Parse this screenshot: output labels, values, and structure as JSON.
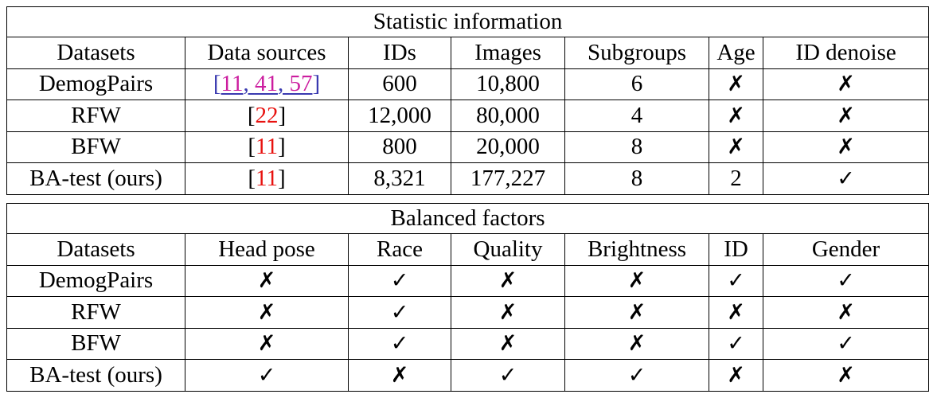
{
  "table1": {
    "title": "Statistic information",
    "headers": [
      "Datasets",
      "Data sources",
      "IDs",
      "Images",
      "Subgroups",
      "Age",
      "ID denoise"
    ],
    "rows": [
      {
        "dataset": "DemogPairs",
        "refs": [
          "11",
          "41",
          "57"
        ],
        "ids": "600",
        "images": "10,800",
        "subgroups": "6",
        "age": "✗",
        "denoise": "✗"
      },
      {
        "dataset": "RFW",
        "refs": [
          "22"
        ],
        "ids": "12,000",
        "images": "80,000",
        "subgroups": "4",
        "age": "✗",
        "denoise": "✗"
      },
      {
        "dataset": "BFW",
        "refs": [
          "11"
        ],
        "ids": "800",
        "images": "20,000",
        "subgroups": "8",
        "age": "✗",
        "denoise": "✗"
      },
      {
        "dataset": "BA-test (ours)",
        "refs": [
          "11"
        ],
        "ids": "8,321",
        "images": "177,227",
        "subgroups": "8",
        "age": "2",
        "denoise": "✓"
      }
    ]
  },
  "table2": {
    "title": "Balanced factors",
    "headers": [
      "Datasets",
      "Head pose",
      "Race",
      "Quality",
      "Brightness",
      "ID",
      "Gender"
    ],
    "rows": [
      {
        "dataset": "DemogPairs",
        "vals": [
          "✗",
          "✓",
          "✗",
          "✗",
          "✓",
          "✓"
        ]
      },
      {
        "dataset": "RFW",
        "vals": [
          "✗",
          "✓",
          "✗",
          "✗",
          "✗",
          "✗"
        ]
      },
      {
        "dataset": "BFW",
        "vals": [
          "✗",
          "✓",
          "✗",
          "✗",
          "✓",
          "✓"
        ]
      },
      {
        "dataset": "BA-test (ours)",
        "vals": [
          "✓",
          "✗",
          "✓",
          "✓",
          "✗",
          "✗"
        ]
      }
    ]
  },
  "colors": {
    "ref_red": "#e8120f",
    "ref_blue": "#3a3ab0",
    "ref_magenta": "#cc1d9f"
  }
}
